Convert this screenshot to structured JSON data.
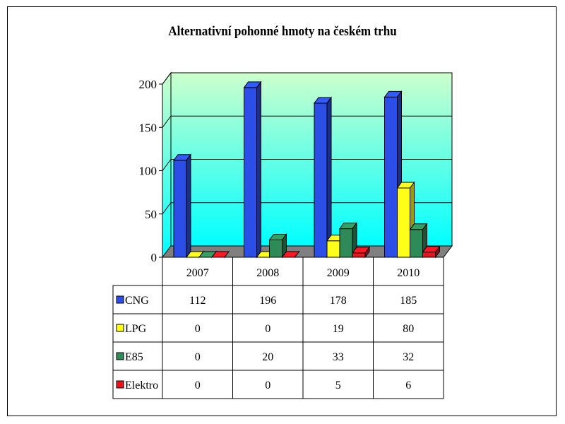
{
  "chart_data": {
    "type": "bar",
    "title": "Alternativní pohonné hmoty na českém trhu",
    "categories": [
      "2007",
      "2008",
      "2009",
      "2010"
    ],
    "series": [
      {
        "name": "CNG",
        "values": [
          112,
          196,
          178,
          185
        ],
        "color": "#2b4ee6"
      },
      {
        "name": "LPG",
        "values": [
          0,
          0,
          19,
          80
        ],
        "color": "#ffff1a"
      },
      {
        "name": "E85",
        "values": [
          0,
          20,
          33,
          32
        ],
        "color": "#2e8b57"
      },
      {
        "name": "Elektro",
        "values": [
          0,
          0,
          5,
          6
        ],
        "color": "#e8141e"
      }
    ],
    "yticks": [
      "0",
      "50",
      "100",
      "150",
      "200"
    ],
    "ylim": [
      0,
      200
    ],
    "grid": true,
    "legend": "data-table",
    "background_gradient": [
      "#ccffcc",
      "#00ffff"
    ],
    "floor_color": "#808080"
  }
}
